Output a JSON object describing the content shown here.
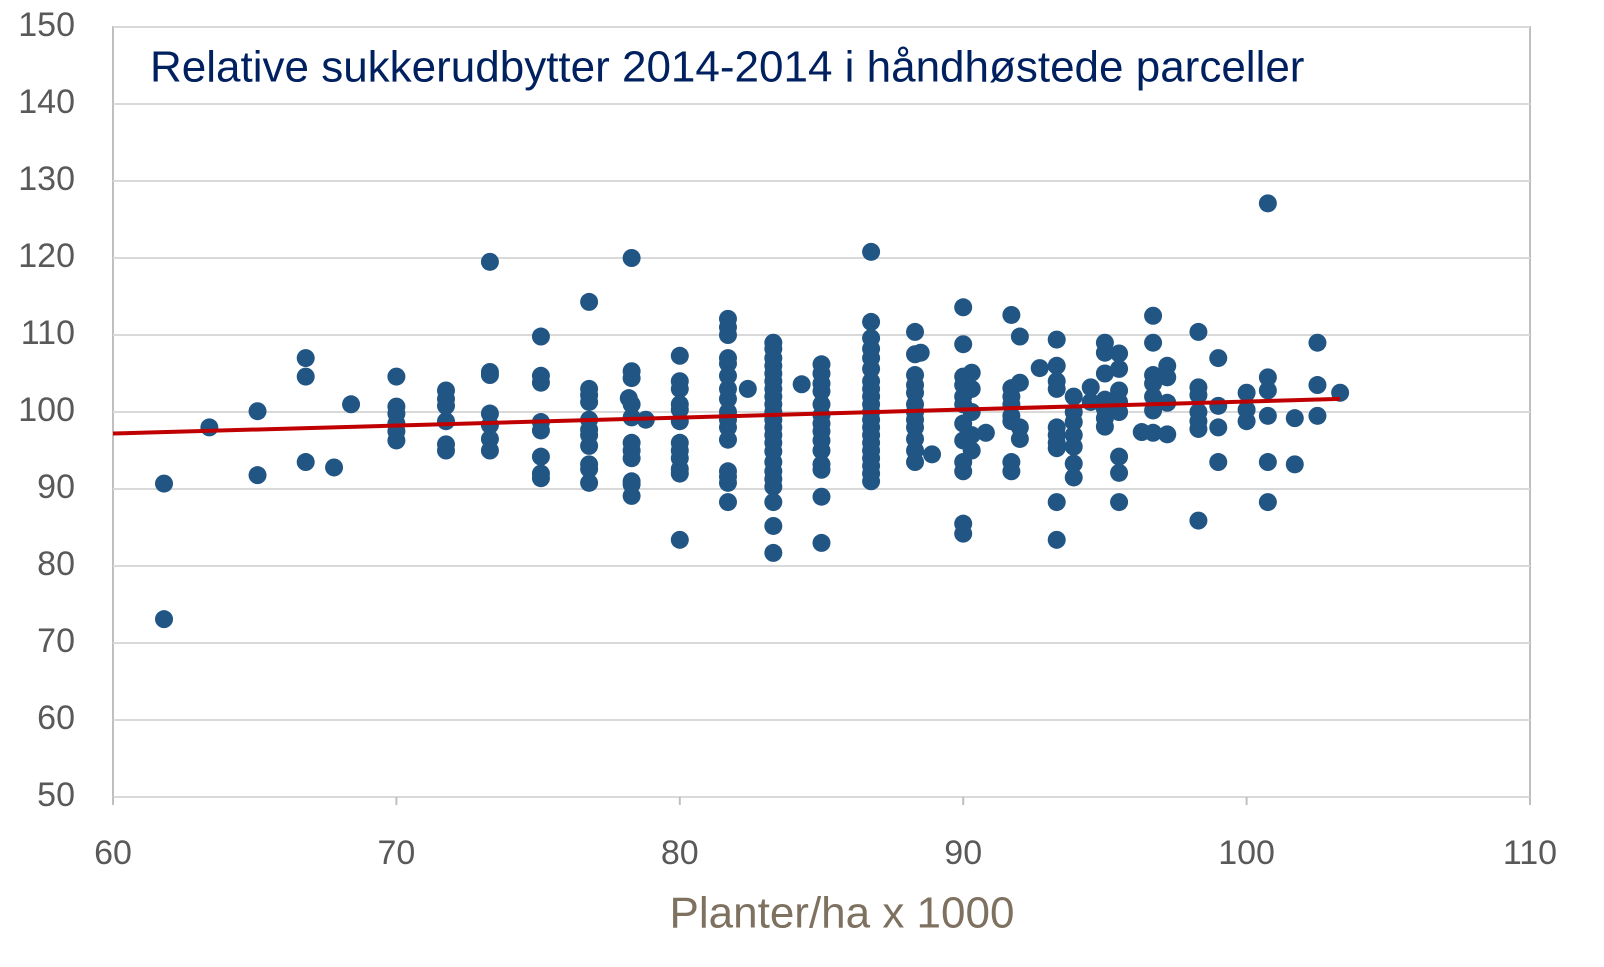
{
  "chart_data": {
    "type": "scatter",
    "title": "Relative sukkerudbytter 2014-2014 i håndhøstede parceller",
    "x_label": "Planter/ha x 1000",
    "color": "#215584",
    "x": [
      61.8,
      61.8,
      63.4,
      65.1,
      65.1,
      66.8,
      66.8,
      66.8,
      67.8,
      68.4,
      70,
      70,
      70,
      70,
      70,
      70,
      71.75,
      71.75,
      71.75,
      71.75,
      71.75,
      71.75,
      73.3,
      73.3,
      73.3,
      73.3,
      73.3,
      73.3,
      73.3,
      75.1,
      75.1,
      75.1,
      75.1,
      75.1,
      75.1,
      75.1,
      75.1,
      76.8,
      76.8,
      76.8,
      76.8,
      76.8,
      76.8,
      76.8,
      76.8,
      76.8,
      76.8,
      76.8,
      78.2,
      78.3,
      78.3,
      78.3,
      78.3,
      78.3,
      78.3,
      78.3,
      78.3,
      78.3,
      78.3,
      78.3,
      78.8,
      80,
      80,
      80,
      80,
      80,
      80,
      80,
      80,
      80,
      80,
      80,
      80,
      81.7,
      81.7,
      81.7,
      81.7,
      81.7,
      81.7,
      81.7,
      81.7,
      81.7,
      81.7,
      81.7,
      81.7,
      81.7,
      81.7,
      81.7,
      81.7,
      82.4,
      83.3,
      83.3,
      83.3,
      83.3,
      83.3,
      83.3,
      83.3,
      83.3,
      83.3,
      83.3,
      83.3,
      83.3,
      83.3,
      83.3,
      83.3,
      83.3,
      83.3,
      83.3,
      83.3,
      83.3,
      83.3,
      83.3,
      84.3,
      85,
      85,
      85,
      85,
      85,
      85,
      85,
      85,
      85,
      85,
      85,
      85,
      85,
      85,
      86.75,
      86.75,
      86.75,
      86.75,
      86.75,
      86.75,
      86.75,
      86.75,
      86.75,
      86.75,
      86.75,
      86.75,
      86.75,
      86.75,
      86.75,
      86.75,
      86.75,
      86.75,
      86.75,
      86.75,
      88.3,
      88.3,
      88.3,
      88.3,
      88.3,
      88.3,
      88.3,
      88.3,
      88.3,
      88.3,
      88.3,
      88.3,
      88.5,
      88.9,
      90,
      90,
      90,
      90,
      90,
      90,
      90,
      90,
      90,
      90,
      90,
      90,
      90.3,
      90.3,
      90.3,
      90.3,
      90.3,
      90.8,
      91.7,
      91.7,
      91.7,
      91.7,
      91.7,
      91.7,
      91.7,
      91.7,
      92,
      92,
      92,
      92,
      92.7,
      93.3,
      93.3,
      93.3,
      93.3,
      93.3,
      93.3,
      93.3,
      93.3,
      93.3,
      93.3,
      93.9,
      93.9,
      93.9,
      93.9,
      93.9,
      93.9,
      93.9,
      94.5,
      94.5,
      95,
      95,
      95,
      95,
      95,
      95,
      95,
      95.5,
      95.5,
      95.5,
      95.5,
      95.5,
      95.5,
      95.5,
      95.5,
      96.3,
      96.7,
      96.7,
      96.7,
      96.7,
      96.7,
      96.7,
      96.7,
      97.2,
      97.2,
      97.2,
      97.2,
      98.3,
      98.3,
      98.3,
      98.3,
      98.3,
      98.3,
      98.3,
      99,
      99,
      99,
      99,
      100,
      100,
      100,
      100.75,
      100.75,
      100.75,
      100.75,
      100.75,
      100.75,
      101.7,
      101.7,
      102.5,
      102.5,
      102.5,
      103.3
    ],
    "values": [
      90.7,
      73.1,
      98,
      100.1,
      91.8,
      107,
      104.6,
      93.5,
      92.8,
      101,
      104.6,
      100.7,
      99.8,
      98.5,
      97.5,
      96.3,
      102.8,
      101.7,
      100.8,
      98.8,
      95.8,
      95,
      119.5,
      105.2,
      104.8,
      99.8,
      98.3,
      96.5,
      95,
      109.8,
      104.7,
      103.8,
      98.7,
      97.6,
      94.2,
      92,
      91.4,
      114.3,
      103,
      102.2,
      101.3,
      99,
      97.7,
      97,
      95.6,
      93.2,
      92.6,
      90.8,
      101.8,
      120,
      105.3,
      104.4,
      101,
      99.3,
      96,
      95,
      94,
      91,
      90.6,
      89.1,
      99,
      107.3,
      104,
      103,
      101,
      100.3,
      98.8,
      96,
      95,
      94,
      92.6,
      92,
      83.4,
      112.1,
      111,
      110,
      107,
      106.3,
      104.7,
      103,
      101.7,
      100,
      99,
      98,
      96.4,
      92.3,
      91.6,
      90.8,
      88.3,
      103,
      109,
      108.2,
      107,
      106,
      105,
      104,
      103,
      102,
      101,
      100,
      99,
      98,
      97,
      96,
      94.9,
      93.5,
      92.3,
      91.3,
      90.3,
      88.3,
      85.2,
      81.7,
      103.6,
      106.2,
      105,
      103.7,
      102.7,
      101,
      99.6,
      98.5,
      97.5,
      96.3,
      95,
      93.2,
      92.5,
      89,
      83,
      120.8,
      111.7,
      109.6,
      108.2,
      107,
      105.6,
      104,
      103,
      102,
      101,
      100,
      99,
      98,
      97,
      96,
      95,
      94,
      93,
      92,
      91,
      110.4,
      107.5,
      104.8,
      103.5,
      102.5,
      101,
      100,
      99,
      98,
      96.5,
      95,
      93.5,
      107.7,
      94.5,
      113.6,
      108.8,
      104.6,
      103.5,
      102,
      101,
      98.5,
      96.3,
      93.5,
      92.3,
      85.5,
      84.2,
      105.1,
      103,
      100,
      97,
      95,
      97.3,
      112.6,
      103.1,
      102,
      101,
      99.5,
      98.8,
      93.5,
      92.3,
      109.8,
      103.8,
      98,
      96.5,
      105.7,
      109.4,
      106,
      104,
      103,
      98,
      97,
      96,
      95.3,
      88.3,
      83.4,
      102,
      100,
      98.7,
      97,
      95.5,
      93.3,
      91.5,
      103.2,
      101.3,
      109,
      107.7,
      105,
      101.6,
      100.4,
      99.2,
      98.1,
      107.6,
      105.6,
      102.8,
      101.3,
      100,
      94.2,
      92.1,
      88.3,
      97.4,
      112.5,
      109,
      104.8,
      103.7,
      102,
      100.2,
      97.3,
      106,
      104.5,
      101.2,
      97.1,
      110.4,
      103.2,
      102.2,
      100,
      98.8,
      97.8,
      85.9,
      107,
      100.8,
      98,
      93.5,
      102.5,
      100.3,
      98.8,
      127.1,
      104.5,
      102.8,
      99.5,
      93.5,
      88.3,
      99.2,
      93.2,
      109,
      103.5,
      99.5,
      102.5
    ],
    "trendline": {
      "color": "#c00000",
      "x": [
        60,
        103.3
      ],
      "values": [
        97.2,
        101.7
      ]
    },
    "xlim": [
      60,
      110
    ],
    "xticks": [
      60,
      70,
      80,
      90,
      100,
      110
    ],
    "ylim": [
      50,
      150
    ],
    "yticks": [
      50,
      60,
      70,
      80,
      90,
      100,
      110,
      120,
      130,
      140,
      150
    ],
    "grid": true
  }
}
